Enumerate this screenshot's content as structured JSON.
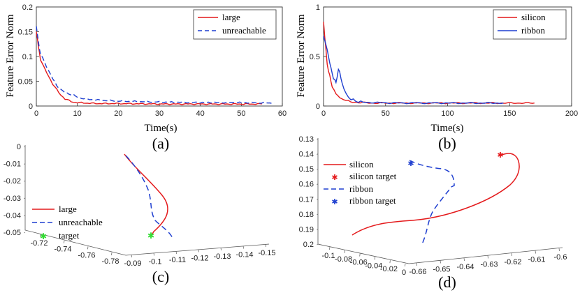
{
  "chart_data": [
    {
      "type": "line",
      "caption": "(a)",
      "xlabel": "Time(s)",
      "ylabel": "Feature Error Norm",
      "xlim": [
        0,
        60
      ],
      "ylim": [
        0,
        0.2
      ],
      "xticks": [
        "0",
        "10",
        "20",
        "30",
        "40",
        "50",
        "60"
      ],
      "yticks": [
        "0",
        "0.05",
        "0.1",
        "0.15",
        "0.2"
      ],
      "legend_position": "top-right",
      "series": [
        {
          "name": "large",
          "color": "#e41a1c",
          "style": "solid",
          "x": [
            0,
            0.5,
            1,
            2,
            3,
            4,
            5,
            6,
            7,
            8,
            9,
            10,
            12,
            15,
            20,
            30,
            40,
            55
          ],
          "y": [
            0.15,
            0.12,
            0.095,
            0.075,
            0.06,
            0.045,
            0.032,
            0.022,
            0.015,
            0.01,
            0.008,
            0.007,
            0.006,
            0.005,
            0.005,
            0.004,
            0.004,
            0.004
          ]
        },
        {
          "name": "unreachable",
          "color": "#1f3fd0",
          "style": "dashed",
          "x": [
            0,
            0.5,
            1,
            2,
            3,
            4,
            5,
            6,
            7,
            8,
            9,
            10,
            12,
            15,
            20,
            30,
            40,
            50,
            58
          ],
          "y": [
            0.16,
            0.13,
            0.105,
            0.09,
            0.07,
            0.055,
            0.042,
            0.032,
            0.027,
            0.025,
            0.022,
            0.018,
            0.014,
            0.012,
            0.01,
            0.008,
            0.007,
            0.007,
            0.006
          ]
        }
      ]
    },
    {
      "type": "line",
      "caption": "(b)",
      "xlabel": "Time(s)",
      "ylabel": "Feature Error Norm",
      "xlim": [
        0,
        200
      ],
      "ylim": [
        0,
        1
      ],
      "xticks": [
        "0",
        "50",
        "100",
        "150",
        "200"
      ],
      "yticks": [
        "0",
        "0.5",
        "1"
      ],
      "legend_position": "top-right",
      "series": [
        {
          "name": "silicon",
          "color": "#e41a1c",
          "style": "solid",
          "x": [
            0,
            1,
            2,
            3,
            5,
            7,
            10,
            13,
            16,
            20,
            25,
            30,
            40,
            60,
            100,
            170
          ],
          "y": [
            0.85,
            0.7,
            0.55,
            0.42,
            0.3,
            0.2,
            0.13,
            0.09,
            0.07,
            0.05,
            0.04,
            0.035,
            0.03,
            0.03,
            0.03,
            0.03
          ]
        },
        {
          "name": "ribbon",
          "color": "#1f3fd0",
          "style": "solid",
          "x": [
            0,
            2,
            4,
            6,
            8,
            10,
            12,
            13,
            15,
            18,
            22,
            26,
            30,
            40,
            60,
            100,
            145
          ],
          "y": [
            0.7,
            0.62,
            0.5,
            0.38,
            0.28,
            0.24,
            0.36,
            0.35,
            0.22,
            0.12,
            0.07,
            0.05,
            0.04,
            0.035,
            0.03,
            0.03,
            0.03
          ]
        }
      ]
    },
    {
      "type": "line",
      "caption": "(c)",
      "projection": "3d",
      "xticks": [
        "-0.72",
        "-0.74",
        "-0.76",
        "-0.78"
      ],
      "yticks": [
        "-0.09",
        "-0.1",
        "-0.11",
        "-0.12",
        "-0.13",
        "-0.14",
        "-0.15"
      ],
      "zticks": [
        "0",
        "-0.01",
        "-0.02",
        "-0.03",
        "-0.04",
        "-0.05"
      ],
      "legend_position": "bottom-left",
      "legend": [
        "large",
        "unreachable",
        "target"
      ],
      "series": [
        {
          "name": "large",
          "color": "#e41a1c",
          "style": "solid"
        },
        {
          "name": "unreachable",
          "color": "#1f3fd0",
          "style": "dashed"
        },
        {
          "name": "target",
          "color": "#33dd33",
          "style": "marker"
        }
      ]
    },
    {
      "type": "line",
      "caption": "(d)",
      "projection": "3d",
      "xticks": [
        "-0.1",
        "-0.08",
        "-0.06",
        "-0.04",
        "-0.02",
        "0"
      ],
      "yticks": [
        "-0.66",
        "-0.65",
        "-0.64",
        "-0.63",
        "-0.62",
        "-0.61",
        "-0.6"
      ],
      "zticks": [
        "0.13",
        "0.14",
        "0.15",
        "0.16",
        "0.17",
        "0.18",
        "0.19",
        "0.2"
      ],
      "legend_position": "top-left",
      "legend": [
        "silicon",
        "silicon target",
        "ribbon",
        "ribbon target"
      ],
      "series": [
        {
          "name": "silicon",
          "color": "#e41a1c",
          "style": "solid"
        },
        {
          "name": "silicon target",
          "color": "#e41a1c",
          "style": "marker"
        },
        {
          "name": "ribbon",
          "color": "#1f3fd0",
          "style": "dashed"
        },
        {
          "name": "ribbon target",
          "color": "#1f3fd0",
          "style": "marker"
        }
      ]
    }
  ]
}
